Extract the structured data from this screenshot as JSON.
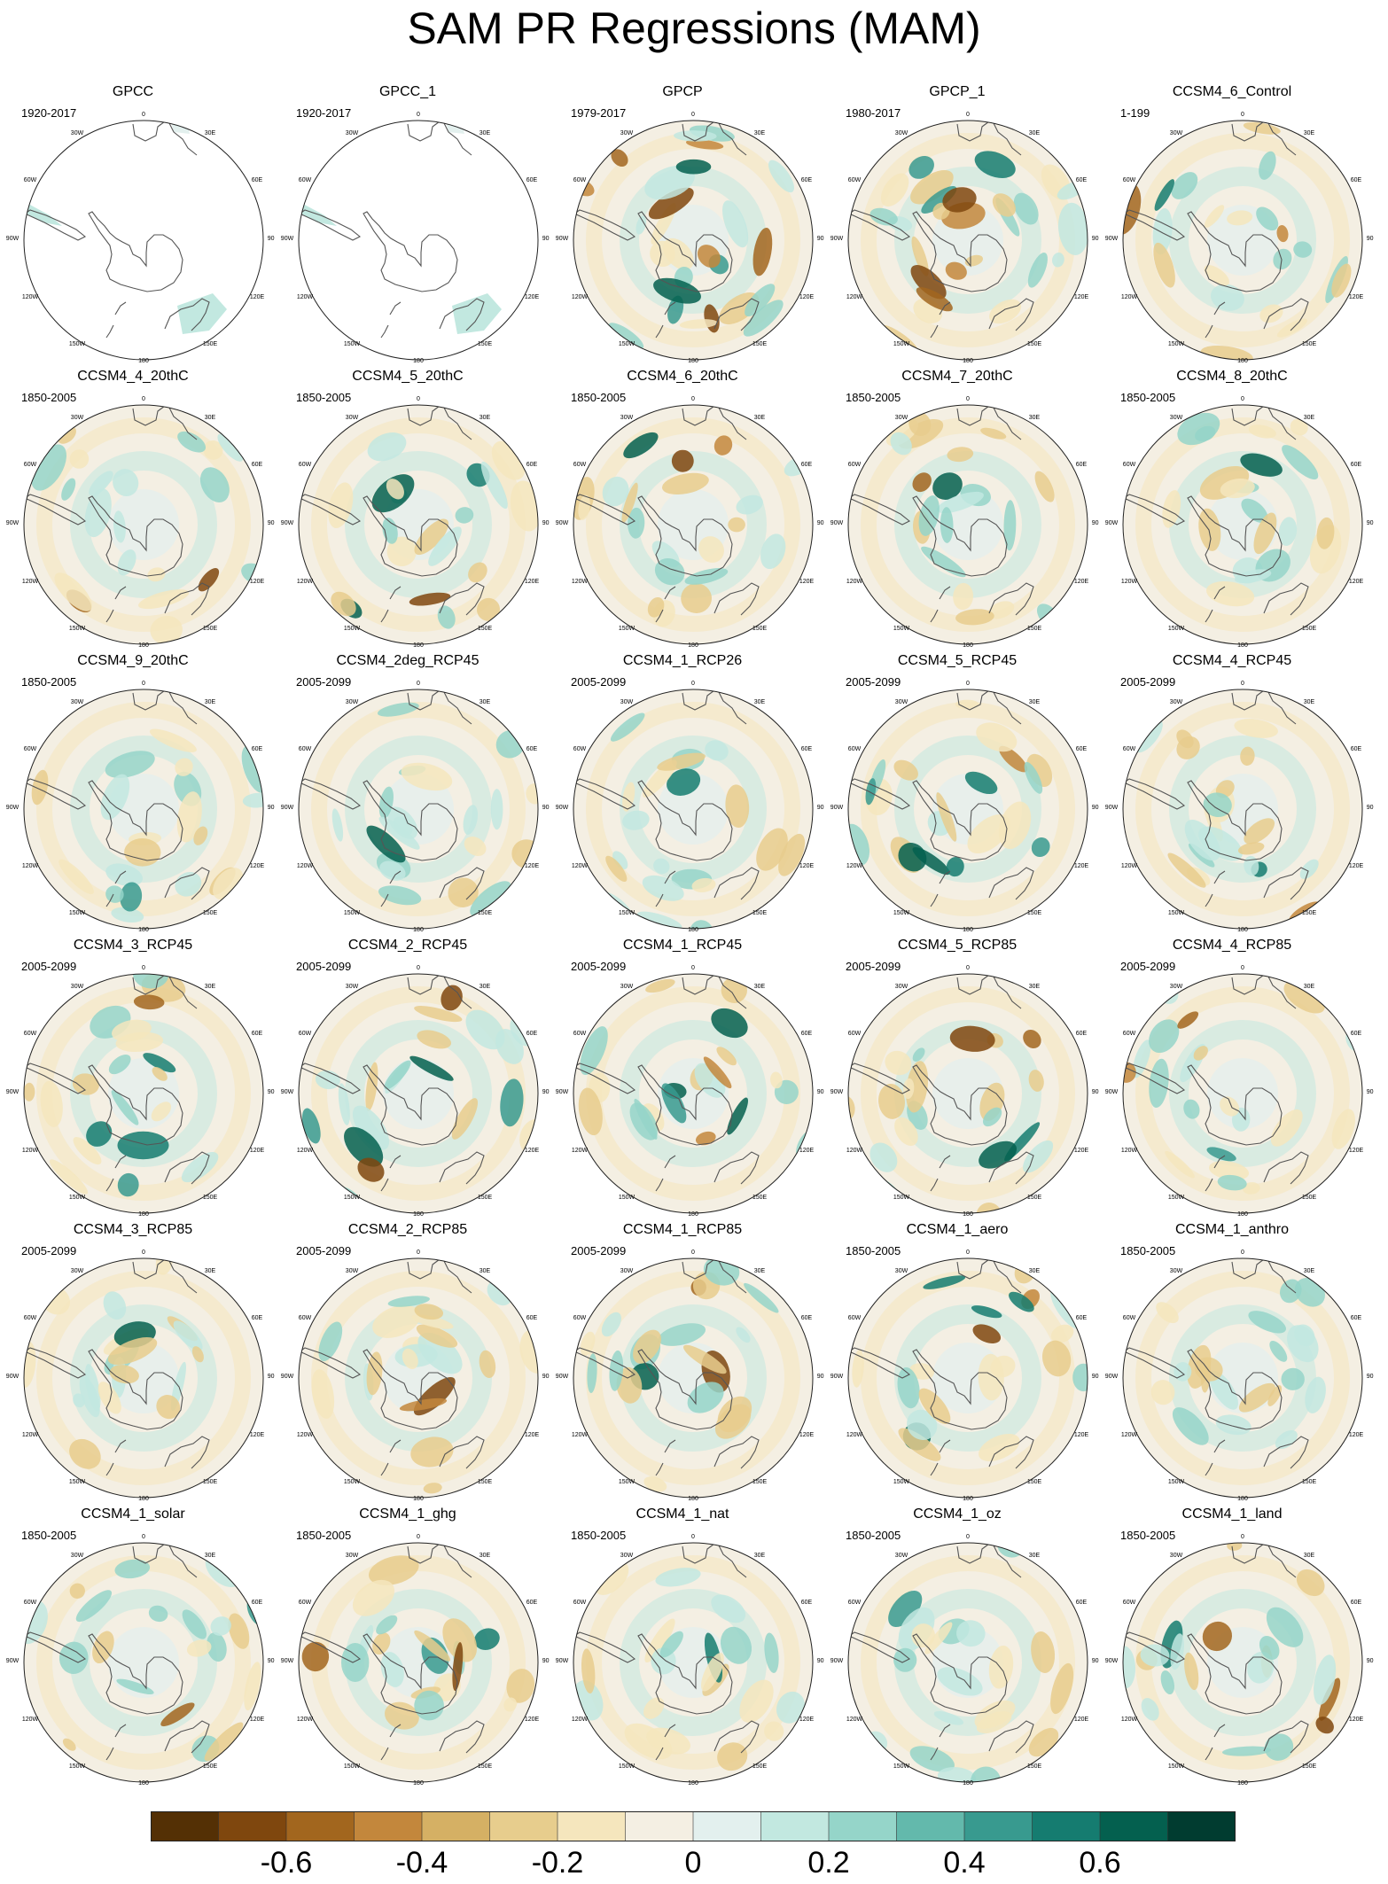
{
  "title": "SAM PR Regressions (MAM)",
  "map_labels": {
    "lon": [
      "0",
      "30E",
      "60E",
      "90E",
      "120E",
      "150E",
      "180",
      "150W",
      "120W",
      "90W",
      "60W",
      "30W"
    ]
  },
  "panels": [
    {
      "name": "GPCC",
      "years": "1920-2017",
      "style": "gpcc"
    },
    {
      "name": "GPCC_1",
      "years": "1920-2017",
      "style": "gpcc"
    },
    {
      "name": "GPCP",
      "years": "1979-2017",
      "style": "gpcp"
    },
    {
      "name": "GPCP_1",
      "years": "1980-2017",
      "style": "gpcp"
    },
    {
      "name": "CCSM4_6_Control",
      "years": "1-199",
      "style": "model"
    },
    {
      "name": "CCSM4_4_20thC",
      "years": "1850-2005",
      "style": "model"
    },
    {
      "name": "CCSM4_5_20thC",
      "years": "1850-2005",
      "style": "model"
    },
    {
      "name": "CCSM4_6_20thC",
      "years": "1850-2005",
      "style": "model"
    },
    {
      "name": "CCSM4_7_20thC",
      "years": "1850-2005",
      "style": "model"
    },
    {
      "name": "CCSM4_8_20thC",
      "years": "1850-2005",
      "style": "model"
    },
    {
      "name": "CCSM4_9_20thC",
      "years": "1850-2005",
      "style": "model"
    },
    {
      "name": "CCSM4_2deg_RCP45",
      "years": "2005-2099",
      "style": "model"
    },
    {
      "name": "CCSM4_1_RCP26",
      "years": "2005-2099",
      "style": "model"
    },
    {
      "name": "CCSM4_5_RCP45",
      "years": "2005-2099",
      "style": "model"
    },
    {
      "name": "CCSM4_4_RCP45",
      "years": "2005-2099",
      "style": "model"
    },
    {
      "name": "CCSM4_3_RCP45",
      "years": "2005-2099",
      "style": "model"
    },
    {
      "name": "CCSM4_2_RCP45",
      "years": "2005-2099",
      "style": "model"
    },
    {
      "name": "CCSM4_1_RCP45",
      "years": "2005-2099",
      "style": "model"
    },
    {
      "name": "CCSM4_5_RCP85",
      "years": "2005-2099",
      "style": "model"
    },
    {
      "name": "CCSM4_4_RCP85",
      "years": "2005-2099",
      "style": "model"
    },
    {
      "name": "CCSM4_3_RCP85",
      "years": "2005-2099",
      "style": "model"
    },
    {
      "name": "CCSM4_2_RCP85",
      "years": "2005-2099",
      "style": "model"
    },
    {
      "name": "CCSM4_1_RCP85",
      "years": "2005-2099",
      "style": "model"
    },
    {
      "name": "CCSM4_1_aero",
      "years": "1850-2005",
      "style": "model"
    },
    {
      "name": "CCSM4_1_anthro",
      "years": "1850-2005",
      "style": "model"
    },
    {
      "name": "CCSM4_1_solar",
      "years": "1850-2005",
      "style": "model"
    },
    {
      "name": "CCSM4_1_ghg",
      "years": "1850-2005",
      "style": "model"
    },
    {
      "name": "CCSM4_1_nat",
      "years": "1850-2005",
      "style": "model"
    },
    {
      "name": "CCSM4_1_oz",
      "years": "1850-2005",
      "style": "model"
    },
    {
      "name": "CCSM4_1_land",
      "years": "1850-2005",
      "style": "model"
    }
  ],
  "colorbar": {
    "colors": [
      "#543005",
      "#7f470e",
      "#a2661e",
      "#c3873c",
      "#d5b064",
      "#e7cd8d",
      "#f5e6bd",
      "#f4efe3",
      "#e3f0ee",
      "#c2e8e0",
      "#95d5c9",
      "#63b9ac",
      "#389a8f",
      "#157c70",
      "#04604f",
      "#013c30"
    ],
    "tick_labels": [
      "-0.6",
      "-0.4",
      "-0.2",
      "0",
      "0.2",
      "0.4",
      "0.6"
    ],
    "tick_values": [
      -0.6,
      -0.4,
      -0.2,
      0,
      0.2,
      0.4,
      0.6
    ],
    "range": [
      -0.8,
      0.8
    ]
  }
}
